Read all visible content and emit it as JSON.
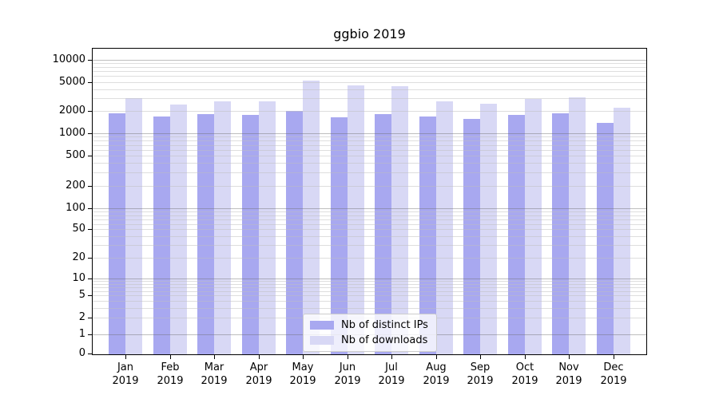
{
  "title": "ggbio 2019",
  "chart_data": {
    "type": "bar",
    "title": "ggbio 2019",
    "categories": [
      "Jan 2019",
      "Feb 2019",
      "Mar 2019",
      "Apr 2019",
      "May 2019",
      "Jun 2019",
      "Jul 2019",
      "Aug 2019",
      "Sep 2019",
      "Oct 2019",
      "Nov 2019",
      "Dec 2019"
    ],
    "x_tick_months": [
      "Jan",
      "Feb",
      "Mar",
      "Apr",
      "May",
      "Jun",
      "Jul",
      "Aug",
      "Sep",
      "Oct",
      "Nov",
      "Dec"
    ],
    "x_tick_year": "2019",
    "series": [
      {
        "name": "Nb of distinct IPs",
        "color": "#a8a8f0",
        "values": [
          1890,
          1680,
          1830,
          1790,
          2000,
          1630,
          1810,
          1710,
          1580,
          1790,
          1890,
          1400
        ]
      },
      {
        "name": "Nb of downloads",
        "color": "#d8d8f5",
        "values": [
          3010,
          2480,
          2750,
          2750,
          5260,
          4490,
          4380,
          2690,
          2520,
          2920,
          3100,
          2230
        ]
      }
    ],
    "ylabel": "",
    "xlabel": "",
    "yscale": "symlog",
    "y_ticks": [
      0,
      1,
      2,
      5,
      10,
      20,
      50,
      100,
      200,
      500,
      1000,
      2000,
      5000,
      10000
    ],
    "ylim": [
      0,
      14500
    ],
    "grid": "on",
    "grid_minor": "on",
    "legend_position": "lower center",
    "frame_color": "#000000",
    "background_color": "#ffffff"
  }
}
